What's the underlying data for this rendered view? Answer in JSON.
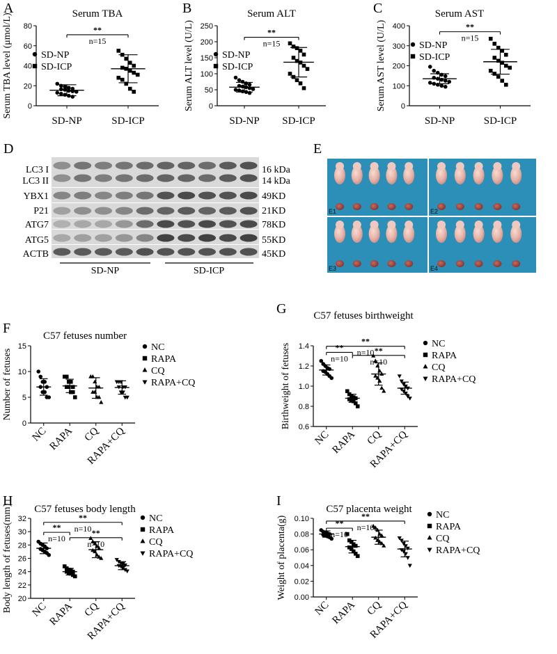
{
  "charts": [
    {
      "panel": "A",
      "type": "scatter",
      "title": "Serum TBA",
      "ylabel": "Serum TBA level (μmol/L)",
      "ylim": [
        0,
        80
      ],
      "yticks": [
        "0",
        "20",
        "40",
        "60",
        "80"
      ],
      "categories": [
        "SD-NP",
        "SD-ICP"
      ],
      "cat_rotated": false,
      "legend": [
        {
          "marker": "circle",
          "label": "SD-NP"
        },
        {
          "marker": "square",
          "label": "SD-ICP"
        }
      ],
      "series": [
        {
          "name": "SD-NP",
          "marker": "circle",
          "mean": 15.5,
          "sd": 5.5,
          "values": [
            22,
            20,
            19,
            18,
            17,
            16.5,
            16,
            15,
            14.5,
            14,
            13,
            12,
            11,
            10,
            9
          ]
        },
        {
          "name": "SD-ICP",
          "marker": "square",
          "mean": 37,
          "sd": 14,
          "values": [
            55,
            51,
            47,
            43,
            40,
            38,
            37,
            35,
            33,
            31,
            28,
            26,
            22,
            17,
            14
          ]
        }
      ],
      "comparisons": [
        {
          "from": 0,
          "to": 1,
          "y": 71,
          "sig": "**",
          "n": "n=15"
        }
      ]
    },
    {
      "panel": "B",
      "type": "scatter",
      "title": "Serum ALT",
      "ylabel": "Serum ALT level (U/L)",
      "ylim": [
        0,
        250
      ],
      "yticks": [
        "0",
        "50",
        "100",
        "150",
        "200",
        "250"
      ],
      "categories": [
        "SD-NP",
        "SD-ICP"
      ],
      "cat_rotated": false,
      "legend": [
        {
          "marker": "circle",
          "label": "SD-NP"
        },
        {
          "marker": "square",
          "label": "SD-ICP"
        }
      ],
      "series": [
        {
          "name": "SD-NP",
          "marker": "circle",
          "mean": 58,
          "sd": 15,
          "values": [
            88,
            80,
            75,
            70,
            66,
            62,
            60,
            58,
            55,
            52,
            50,
            48,
            45,
            43,
            40
          ]
        },
        {
          "name": "SD-ICP",
          "marker": "square",
          "mean": 136,
          "sd": 46,
          "values": [
            195,
            185,
            180,
            172,
            160,
            150,
            140,
            135,
            125,
            115,
            100,
            90,
            80,
            70,
            55
          ]
        }
      ],
      "comparisons": [
        {
          "from": 0,
          "to": 1,
          "y": 214,
          "sig": "**",
          "n": "n=15"
        }
      ]
    },
    {
      "panel": "C",
      "type": "scatter",
      "title": "Serum AST",
      "ylabel": "Serum AST level (U/L)",
      "ylim": [
        0,
        400
      ],
      "yticks": [
        "0",
        "100",
        "200",
        "300",
        "400"
      ],
      "categories": [
        "SD-NP",
        "SD-ICP"
      ],
      "cat_rotated": false,
      "legend": [
        {
          "marker": "circle",
          "label": "SD-NP"
        },
        {
          "marker": "square",
          "label": "SD-ICP"
        }
      ],
      "series": [
        {
          "name": "SD-NP",
          "marker": "circle",
          "mean": 135,
          "sd": 25,
          "values": [
            195,
            175,
            165,
            155,
            148,
            140,
            135,
            130,
            125,
            120,
            115,
            110,
            105,
            100,
            95
          ]
        },
        {
          "name": "SD-ICP",
          "marker": "square",
          "mean": 220,
          "sd": 62,
          "values": [
            335,
            310,
            290,
            275,
            255,
            240,
            225,
            215,
            200,
            190,
            175,
            160,
            145,
            125,
            105
          ]
        }
      ],
      "comparisons": [
        {
          "from": 0,
          "to": 1,
          "y": 370,
          "sig": "**",
          "n": "n=15"
        }
      ]
    },
    {
      "panel": "F",
      "type": "scatter",
      "title": "C57 fetuses number",
      "ylabel": "Number of fetuses",
      "ylim": [
        0,
        15
      ],
      "yticks": [
        "0",
        "5",
        "10",
        "15"
      ],
      "categories": [
        "NC",
        "RAPA",
        "CQ",
        "RAPA+CQ"
      ],
      "cat_rotated": true,
      "legend": [
        {
          "marker": "circle",
          "label": "NC"
        },
        {
          "marker": "square",
          "label": "RAPA"
        },
        {
          "marker": "triangle-up",
          "label": "CQ"
        },
        {
          "marker": "triangle-down",
          "label": "RAPA+CQ"
        }
      ],
      "series": [
        {
          "name": "NC",
          "marker": "circle",
          "mean": 7,
          "sd": 1.6,
          "values": [
            10,
            9,
            8,
            8,
            7,
            7,
            6,
            6,
            5,
            5
          ]
        },
        {
          "name": "RAPA",
          "marker": "square",
          "mean": 7.2,
          "sd": 1.3,
          "values": [
            9,
            9,
            8,
            8,
            7,
            7,
            7,
            6,
            6,
            5
          ]
        },
        {
          "name": "CQ",
          "marker": "triangle-up",
          "mean": 6.8,
          "sd": 2,
          "values": [
            9,
            9,
            8,
            7,
            7,
            6,
            6,
            5,
            5,
            4
          ]
        },
        {
          "name": "RAPA+CQ",
          "marker": "triangle-down",
          "mean": 6.9,
          "sd": 1.3,
          "values": [
            8,
            8,
            8,
            7,
            7,
            7,
            6,
            6,
            5,
            5
          ]
        }
      ],
      "comparisons": []
    },
    {
      "panel": "G",
      "type": "scatter",
      "title": "C57 fetuses birthweight",
      "ylabel": "Birthweight of fetuses",
      "ylim": [
        0.6,
        1.4
      ],
      "yticks": [
        "0.6",
        "0.8",
        "1.0",
        "1.2",
        "1.4"
      ],
      "categories": [
        "NC",
        "RAPA",
        "CQ",
        "RAPA+CQ"
      ],
      "cat_rotated": true,
      "legend": [
        {
          "marker": "circle",
          "label": "NC"
        },
        {
          "marker": "square",
          "label": "RAPA"
        },
        {
          "marker": "triangle-up",
          "label": "CQ"
        },
        {
          "marker": "triangle-down",
          "label": "RAPA+CQ"
        }
      ],
      "series": [
        {
          "name": "NC",
          "marker": "circle",
          "mean": 1.16,
          "sd": 0.05,
          "values": [
            1.25,
            1.22,
            1.2,
            1.18,
            1.17,
            1.15,
            1.14,
            1.12,
            1.1,
            1.08
          ]
        },
        {
          "name": "RAPA",
          "marker": "square",
          "mean": 0.88,
          "sd": 0.04,
          "values": [
            0.95,
            0.92,
            0.9,
            0.89,
            0.88,
            0.87,
            0.86,
            0.85,
            0.83,
            0.8
          ]
        },
        {
          "name": "CQ",
          "marker": "triangle-up",
          "mean": 1.12,
          "sd": 0.11,
          "values": [
            1.3,
            1.25,
            1.2,
            1.15,
            1.12,
            1.1,
            1.08,
            1.05,
            0.98,
            0.95
          ]
        },
        {
          "name": "RAPA+CQ",
          "marker": "triangle-down",
          "mean": 0.98,
          "sd": 0.06,
          "values": [
            1.1,
            1.05,
            1.02,
            1.0,
            0.98,
            0.97,
            0.95,
            0.93,
            0.9,
            0.88
          ]
        }
      ],
      "comparisons": [
        {
          "from": 0,
          "to": 3,
          "y": 1.395,
          "sig": "**",
          "n": "n=10"
        },
        {
          "from": 0,
          "to": 1,
          "y": 1.335,
          "sig": "**",
          "n": "n=10"
        },
        {
          "from": 1,
          "to": 3,
          "y": 1.305,
          "sig": "**",
          "n": "n=10"
        }
      ]
    },
    {
      "panel": "H",
      "type": "scatter",
      "title": "C57 fetuses body length",
      "ylabel": "Body length of fetuses(mm)",
      "ylim": [
        20,
        32
      ],
      "yticks": [
        "20",
        "22",
        "24",
        "26",
        "28",
        "30",
        "32"
      ],
      "categories": [
        "NC",
        "RAPA",
        "CQ",
        "RAPA+CQ"
      ],
      "cat_rotated": true,
      "legend": [
        {
          "marker": "circle",
          "label": "NC"
        },
        {
          "marker": "square",
          "label": "RAPA"
        },
        {
          "marker": "triangle-up",
          "label": "CQ"
        },
        {
          "marker": "triangle-down",
          "label": "RAPA+CQ"
        }
      ],
      "series": [
        {
          "name": "NC",
          "marker": "circle",
          "mean": 27.5,
          "sd": 0.8,
          "values": [
            28.5,
            28.2,
            28,
            27.8,
            27.5,
            27.4,
            27.2,
            27,
            26.8,
            26.5
          ]
        },
        {
          "name": "RAPA",
          "marker": "square",
          "mean": 24,
          "sd": 0.5,
          "values": [
            24.8,
            24.5,
            24.3,
            24.2,
            24,
            24,
            23.8,
            23.7,
            23.5,
            23.3
          ]
        },
        {
          "name": "CQ",
          "marker": "triangle-up",
          "mean": 27.3,
          "sd": 1.2,
          "values": [
            29,
            28.5,
            28.2,
            27.8,
            27.5,
            27.2,
            27,
            26.5,
            26.2,
            26
          ]
        },
        {
          "name": "RAPA+CQ",
          "marker": "triangle-down",
          "mean": 24.9,
          "sd": 0.6,
          "values": [
            25.8,
            25.5,
            25.3,
            25.2,
            25,
            24.9,
            24.8,
            24.6,
            24.3,
            24.1
          ]
        }
      ],
      "comparisons": [
        {
          "from": 0,
          "to": 3,
          "y": 31.4,
          "sig": "**",
          "n": "n=10"
        },
        {
          "from": 0,
          "to": 1,
          "y": 29.9,
          "sig": "**",
          "n": "n=10"
        },
        {
          "from": 1,
          "to": 3,
          "y": 29.1,
          "sig": "**",
          "n": "n=10"
        }
      ]
    },
    {
      "panel": "I",
      "type": "scatter",
      "title": "C57 placenta weight",
      "ylabel": "Weight of placenta(g)",
      "ylim": [
        0,
        0.1
      ],
      "yticks": [
        "0.00",
        "0.02",
        "0.04",
        "0.06",
        "0.08",
        "0.10"
      ],
      "categories": [
        "NC",
        "RAPA",
        "CQ",
        "RAPA+CQ"
      ],
      "cat_rotated": true,
      "legend": [
        {
          "marker": "circle",
          "label": "NC"
        },
        {
          "marker": "square",
          "label": "RAPA"
        },
        {
          "marker": "triangle-up",
          "label": "CQ"
        },
        {
          "marker": "triangle-down",
          "label": "RAPA+CQ"
        }
      ],
      "series": [
        {
          "name": "NC",
          "marker": "circle",
          "mean": 0.08,
          "sd": 0.004,
          "values": [
            0.085,
            0.083,
            0.082,
            0.081,
            0.08,
            0.079,
            0.078,
            0.077,
            0.076,
            0.074
          ]
        },
        {
          "name": "RAPA",
          "marker": "square",
          "mean": 0.064,
          "sd": 0.008,
          "values": [
            0.08,
            0.072,
            0.07,
            0.067,
            0.065,
            0.063,
            0.061,
            0.058,
            0.055,
            0.052
          ]
        },
        {
          "name": "CQ",
          "marker": "triangle-up",
          "mean": 0.076,
          "sd": 0.009,
          "values": [
            0.09,
            0.088,
            0.085,
            0.08,
            0.078,
            0.075,
            0.072,
            0.07,
            0.068,
            0.065
          ]
        },
        {
          "name": "RAPA+CQ",
          "marker": "triangle-down",
          "mean": 0.061,
          "sd": 0.01,
          "values": [
            0.075,
            0.072,
            0.068,
            0.065,
            0.062,
            0.06,
            0.058,
            0.055,
            0.05,
            0.04
          ]
        }
      ],
      "comparisons": [
        {
          "from": 0,
          "to": 3,
          "y": 0.0965,
          "sig": "**",
          "n": "n=10"
        },
        {
          "from": 0,
          "to": 1,
          "y": 0.0875,
          "sig": "**",
          "n": "n=10"
        }
      ]
    }
  ],
  "western_blot": {
    "panel": "D",
    "lanes": 10,
    "rows": [
      {
        "label": "LC3 I",
        "size": "16 kDa"
      },
      {
        "label": "LC3 II",
        "size": "14 kDa"
      },
      {
        "label": "YBX1",
        "size": "49KD"
      },
      {
        "label": "P21",
        "size": "21KD"
      },
      {
        "label": "ATG7",
        "size": "78KD"
      },
      {
        "label": "ATG5",
        "size": "55KD"
      },
      {
        "label": "ACTB",
        "size": "45KD"
      }
    ],
    "groups": [
      "SD-NP",
      "SD-ICP"
    ]
  },
  "fetus_photo": {
    "panel": "E",
    "quadrants": [
      "E1",
      "E2",
      "E3",
      "E4"
    ],
    "background_color": "#2c8fb7"
  }
}
